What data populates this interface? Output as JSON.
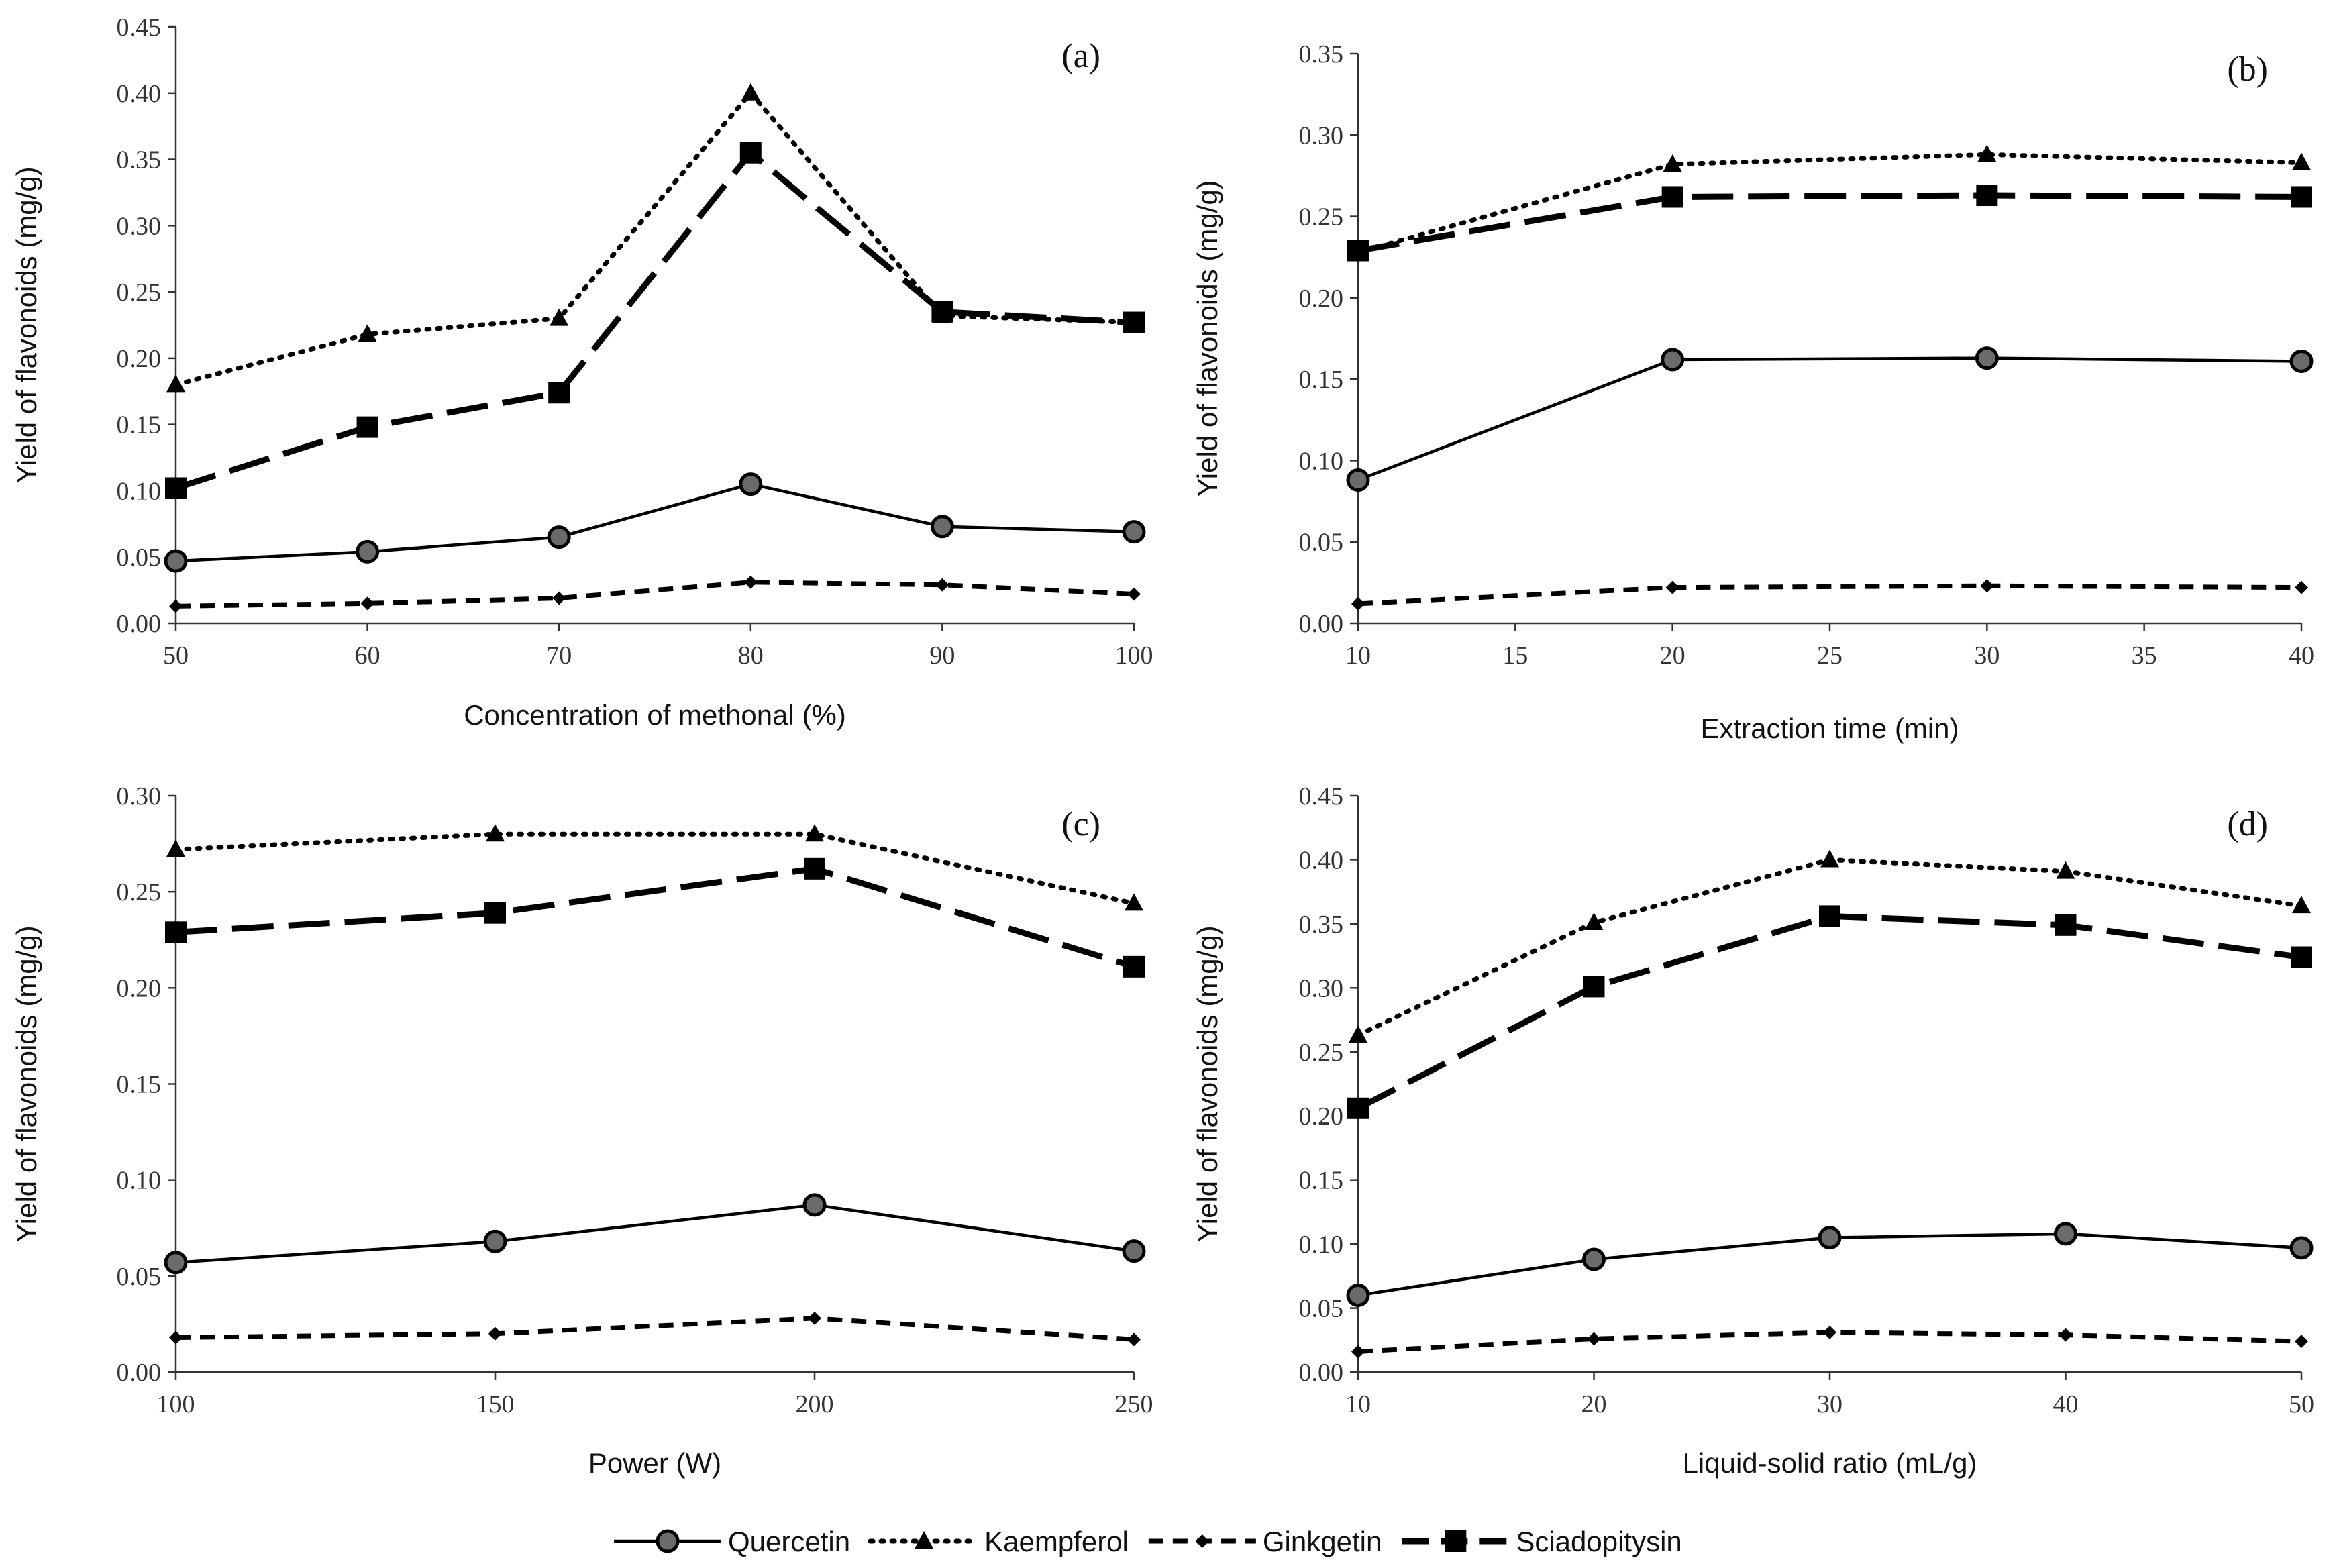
{
  "chart_data": [
    {
      "type": "line",
      "panel_label": "(a)",
      "xlabel": "Concentration  of  methonal (%)",
      "ylabel": "Yield of  flavonoids  (mg/g)",
      "x": [
        50,
        60,
        70,
        80,
        90,
        100
      ],
      "xlim": [
        50,
        100
      ],
      "xticks": [
        50,
        60,
        70,
        80,
        90,
        100
      ],
      "ylim": [
        0,
        0.45
      ],
      "yticks": [
        "0.00",
        "0.05",
        "0.10",
        "0.15",
        "0.20",
        "0.25",
        "0.30",
        "0.35",
        "0.40",
        "0.45"
      ],
      "series": [
        {
          "name": "Quercetin",
          "values": [
            0.047,
            0.054,
            0.065,
            0.105,
            0.073,
            0.069
          ]
        },
        {
          "name": "Kaempferol",
          "values": [
            0.18,
            0.218,
            0.23,
            0.4,
            0.232,
            0.227
          ]
        },
        {
          "name": "Ginkgetin",
          "values": [
            0.013,
            0.015,
            0.019,
            0.031,
            0.029,
            0.022
          ]
        },
        {
          "name": "Sciadopitysin",
          "values": [
            0.102,
            0.148,
            0.174,
            0.355,
            0.235,
            0.227
          ]
        }
      ]
    },
    {
      "type": "line",
      "panel_label": "(b)",
      "xlabel": "Extraction time (min)",
      "ylabel": "Yield of  flavonoids  (mg/g)",
      "x": [
        10,
        20,
        30,
        40
      ],
      "xlim": [
        10,
        40
      ],
      "xticks": [
        10,
        15,
        20,
        25,
        30,
        35,
        40
      ],
      "ylim": [
        0,
        0.35
      ],
      "yticks": [
        "0.00",
        "0.05",
        "0.10",
        "0.15",
        "0.20",
        "0.25",
        "0.30",
        "0.35"
      ],
      "series": [
        {
          "name": "Quercetin",
          "values": [
            0.088,
            0.162,
            0.163,
            0.161
          ]
        },
        {
          "name": "Kaempferol",
          "values": [
            0.228,
            0.282,
            0.288,
            0.283
          ]
        },
        {
          "name": "Ginkgetin",
          "values": [
            0.012,
            0.022,
            0.023,
            0.022
          ]
        },
        {
          "name": "Sciadopitysin",
          "values": [
            0.229,
            0.262,
            0.263,
            0.262
          ]
        }
      ]
    },
    {
      "type": "line",
      "panel_label": "(c)",
      "xlabel": "Power (W)",
      "ylabel": "Yield of  flavonoids  (mg/g)",
      "x": [
        100,
        150,
        200,
        250
      ],
      "xlim": [
        100,
        250
      ],
      "xticks": [
        100,
        150,
        200,
        250
      ],
      "ylim": [
        0,
        0.3
      ],
      "yticks": [
        "0.00",
        "0.05",
        "0.10",
        "0.15",
        "0.20",
        "0.25",
        "0.30"
      ],
      "series": [
        {
          "name": "Quercetin",
          "values": [
            0.057,
            0.068,
            0.087,
            0.063
          ]
        },
        {
          "name": "Kaempferol",
          "values": [
            0.272,
            0.28,
            0.28,
            0.244
          ]
        },
        {
          "name": "Ginkgetin",
          "values": [
            0.018,
            0.02,
            0.028,
            0.017
          ]
        },
        {
          "name": "Sciadopitysin",
          "values": [
            0.229,
            0.239,
            0.262,
            0.211
          ]
        }
      ]
    },
    {
      "type": "line",
      "panel_label": "(d)",
      "xlabel": "Liquid-solid  ratio  (mL/g)",
      "ylabel": "Yield of  flavonoids  (mg/g)",
      "x": [
        10,
        20,
        30,
        40,
        50
      ],
      "xlim": [
        10,
        50
      ],
      "xticks": [
        10,
        20,
        30,
        40,
        50
      ],
      "ylim": [
        0,
        0.45
      ],
      "yticks": [
        "0.00",
        "0.05",
        "0.10",
        "0.15",
        "0.20",
        "0.25",
        "0.30",
        "0.35",
        "0.40",
        "0.45"
      ],
      "series": [
        {
          "name": "Quercetin",
          "values": [
            0.06,
            0.088,
            0.105,
            0.108,
            0.097
          ]
        },
        {
          "name": "Kaempferol",
          "values": [
            0.263,
            0.351,
            0.4,
            0.391,
            0.364
          ]
        },
        {
          "name": "Ginkgetin",
          "values": [
            0.016,
            0.026,
            0.031,
            0.029,
            0.024
          ]
        },
        {
          "name": "Sciadopitysin",
          "values": [
            0.206,
            0.301,
            0.356,
            0.349,
            0.324
          ]
        }
      ]
    }
  ],
  "legend": {
    "position": "bottom-center",
    "items": [
      {
        "name": "Quercetin",
        "line": "solid",
        "marker": "circle"
      },
      {
        "name": "Kaempferol",
        "line": "dotted",
        "marker": "triangle"
      },
      {
        "name": "Ginkgetin",
        "line": "short-dash",
        "marker": "diamond"
      },
      {
        "name": "Sciadopitysin",
        "line": "long-dash",
        "marker": "square"
      }
    ]
  },
  "colors": {
    "lines": "#000000",
    "axes": "#333333",
    "circle_fill": "#6b6b6b"
  }
}
